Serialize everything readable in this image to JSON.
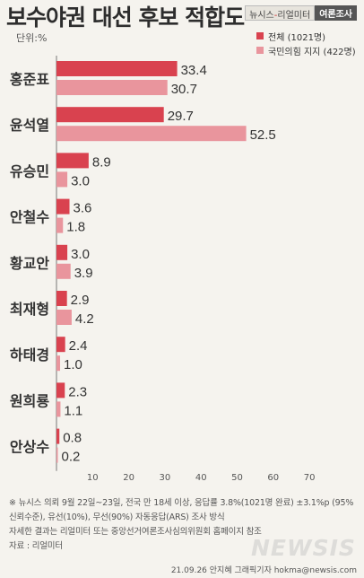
{
  "header": {
    "title": "보수야권 대선 후보 적합도",
    "brand_left": "뉴시스",
    "brand_sep": "-",
    "brand_mid": "리얼미터",
    "brand_right": "여론조사",
    "unit": "단위:%"
  },
  "notes": {
    "line1": "※ 뉴시스 의뢰 9월 22일~23일, 전국 만 18세 이상, 응답률 3.8%(1021명 완료) ±3.1%p (95%",
    "line2": "신뢰수준), 유선(10%), 무선(90%) 자동응답(ARS) 조사 방식",
    "line3": "자세한 결과는 리얼미터 또는 중앙선거여론조사심의위원회 홈페이지 참조",
    "line4": "자료 : 리얼미터"
  },
  "watermark": "NEWSIS",
  "credit": "21.09.26 안지혜 그래픽기자 hokma@newsis.com",
  "chart_data": {
    "type": "bar",
    "orientation": "horizontal",
    "categories": [
      "홍준표",
      "윤석열",
      "유승민",
      "안철수",
      "황교안",
      "최재형",
      "하태경",
      "원희룡",
      "안상수"
    ],
    "series": [
      {
        "name": "전체 (1021명)",
        "color": "#d9424f",
        "values": [
          33.4,
          29.7,
          8.9,
          3.6,
          3.0,
          2.9,
          2.4,
          2.3,
          0.8
        ]
      },
      {
        "name": "국민의힘 지지 (422명)",
        "color": "#e9959d",
        "values": [
          30.7,
          52.5,
          3.0,
          1.8,
          3.9,
          4.2,
          1.0,
          1.1,
          0.2
        ]
      }
    ],
    "value_labels": [
      [
        "33.4",
        "29.7",
        "8.9",
        "3.6",
        "3.0",
        "2.9",
        "2.4",
        "2.3",
        "0.8"
      ],
      [
        "30.7",
        "52.5",
        "3.0",
        "1.8",
        "3.9",
        "4.2",
        "1.0",
        "1.1",
        "0.2"
      ]
    ],
    "xticks": [
      "10",
      "20",
      "30",
      "40",
      "50",
      "60",
      "70"
    ],
    "xlim": [
      0,
      75
    ],
    "ylabel": "",
    "xlabel": "",
    "legend_position": "top-right",
    "grid": false
  }
}
